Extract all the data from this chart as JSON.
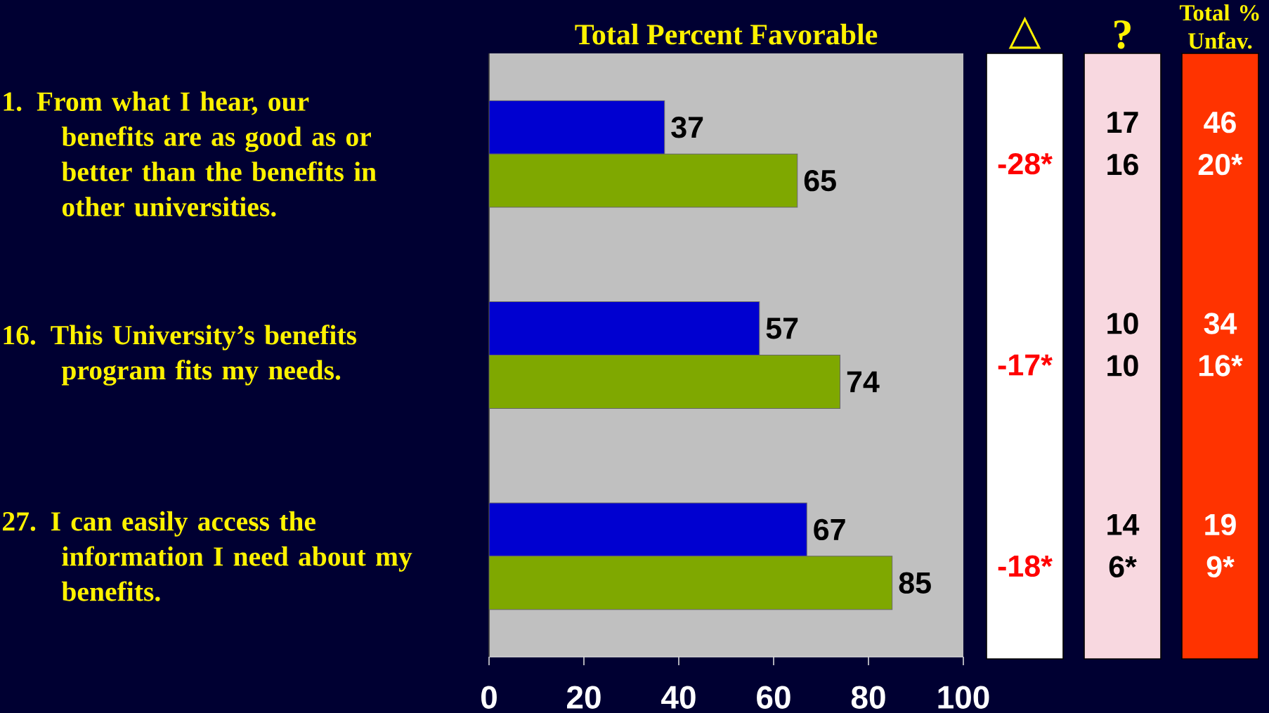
{
  "chart_data": [
    {
      "type": "bar",
      "orientation": "horizontal",
      "title": "Total Percent Favorable",
      "categories": [
        "1. From what I hear, our benefits are as good as or better than the benefits in other universities.",
        "16. This University’s benefits program fits my needs.",
        "27. I can easily access the information I need about my benefits."
      ],
      "series": [
        {
          "color": "#0000d0",
          "values": [
            37,
            57,
            67
          ]
        },
        {
          "color": "#7fa800",
          "values": [
            65,
            74,
            85
          ]
        }
      ],
      "xlim": [
        0,
        100
      ],
      "xticks": [
        0,
        20,
        40,
        60,
        80,
        100
      ],
      "data_labels": true
    },
    {
      "type": "other",
      "title": "△",
      "color": "#ffffff",
      "annotations": [
        "-28*",
        "-17*",
        "-18*"
      ]
    },
    {
      "type": "other",
      "title": "?",
      "color": "#f8d8e0",
      "annotations": [
        "17",
        "16",
        "10",
        "10",
        "14",
        "6*"
      ]
    },
    {
      "type": "other",
      "title": "Total % Unfav.",
      "color": "#ff3300",
      "annotations": [
        "46",
        "20*",
        "34",
        "16*",
        "19",
        "9*"
      ]
    }
  ]
}
